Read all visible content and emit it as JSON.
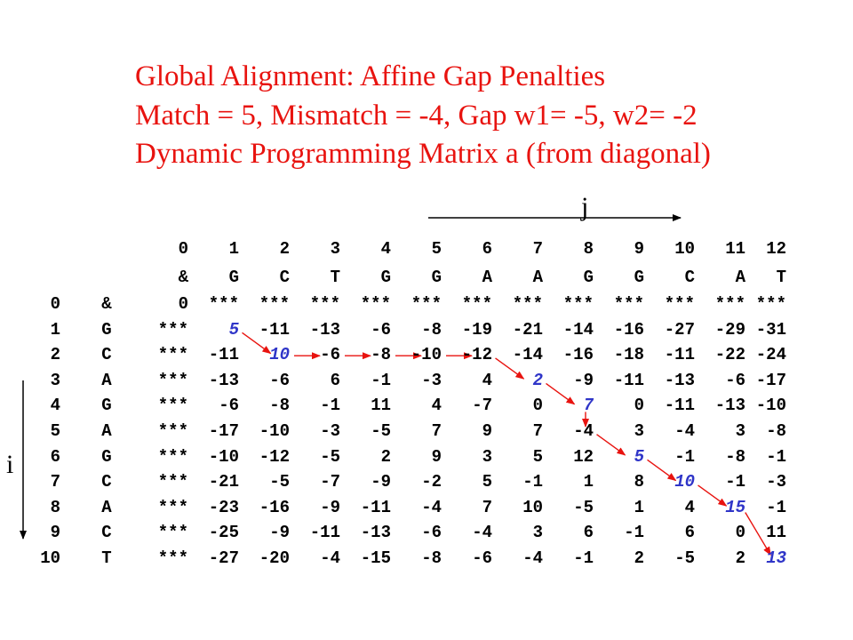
{
  "title": {
    "line1": "Global Alignment: Affine Gap Penalties",
    "line2": "Match = 5, Mismatch = -4, Gap w1= -5, w2= -2",
    "line3": "Dynamic Programming Matrix a (from diagonal)"
  },
  "axis": {
    "j_label": "j",
    "i_label": "i"
  },
  "col_indices": [
    "0",
    "1",
    "2",
    "3",
    "4",
    "5",
    "6",
    "7",
    "8",
    "9",
    "10",
    "11",
    "12"
  ],
  "col_letters": [
    "&",
    "G",
    "C",
    "T",
    "G",
    "G",
    "A",
    "A",
    "G",
    "G",
    "C",
    "A",
    "T"
  ],
  "rows": [
    {
      "i": "0",
      "ch": "&",
      "cells": [
        "0",
        "***",
        "***",
        "***",
        "***",
        "***",
        "***",
        "***",
        "***",
        "***",
        "***",
        "***",
        "***"
      ]
    },
    {
      "i": "1",
      "ch": "G",
      "cells": [
        "***",
        "5",
        "-11",
        "-13",
        "-6",
        "-8",
        "-19",
        "-21",
        "-14",
        "-16",
        "-27",
        "-29",
        "-31"
      ]
    },
    {
      "i": "2",
      "ch": "C",
      "cells": [
        "***",
        "-11",
        "10",
        "-6",
        "-8",
        "-10",
        "-12",
        "-14",
        "-16",
        "-18",
        "-11",
        "-22",
        "-24"
      ]
    },
    {
      "i": "3",
      "ch": "A",
      "cells": [
        "***",
        "-13",
        "-6",
        "6",
        "-1",
        "-3",
        "4",
        "2",
        "-9",
        "-11",
        "-13",
        "-6",
        "-17"
      ]
    },
    {
      "i": "4",
      "ch": "G",
      "cells": [
        "***",
        "-6",
        "-8",
        "-1",
        "11",
        "4",
        "-7",
        "0",
        "7",
        "0",
        "-11",
        "-13",
        "-10"
      ]
    },
    {
      "i": "5",
      "ch": "A",
      "cells": [
        "***",
        "-17",
        "-10",
        "-3",
        "-5",
        "7",
        "9",
        "7",
        "-4",
        "3",
        "-4",
        "3",
        "-8"
      ]
    },
    {
      "i": "6",
      "ch": "G",
      "cells": [
        "***",
        "-10",
        "-12",
        "-5",
        "2",
        "9",
        "3",
        "5",
        "12",
        "5",
        "-1",
        "-8",
        "-1"
      ]
    },
    {
      "i": "7",
      "ch": "C",
      "cells": [
        "***",
        "-21",
        "-5",
        "-7",
        "-9",
        "-2",
        "5",
        "-1",
        "1",
        "8",
        "10",
        "-1",
        "-3"
      ]
    },
    {
      "i": "8",
      "ch": "A",
      "cells": [
        "***",
        "-23",
        "-16",
        "-9",
        "-11",
        "-4",
        "7",
        "10",
        "-5",
        "1",
        "4",
        "15",
        "-1"
      ]
    },
    {
      "i": "9",
      "ch": "C",
      "cells": [
        "***",
        "-25",
        "-9",
        "-11",
        "-13",
        "-6",
        "-4",
        "3",
        "6",
        "-1",
        "6",
        "0",
        "11"
      ]
    },
    {
      "i": "10",
      "ch": "T",
      "cells": [
        "***",
        "-27",
        "-20",
        "-4",
        "-15",
        "-8",
        "-6",
        "-4",
        "-1",
        "2",
        "-5",
        "2",
        "13"
      ]
    }
  ],
  "highlight_cells": [
    [
      1,
      1
    ],
    [
      2,
      2
    ],
    [
      3,
      7
    ],
    [
      4,
      8
    ],
    [
      6,
      9
    ],
    [
      7,
      10
    ],
    [
      8,
      11
    ],
    [
      10,
      12
    ]
  ],
  "traceback_path": [
    [
      1,
      1
    ],
    [
      2,
      2
    ],
    [
      2,
      3
    ],
    [
      2,
      4
    ],
    [
      2,
      5
    ],
    [
      2,
      6
    ],
    [
      3,
      7
    ],
    [
      4,
      8
    ],
    [
      5,
      8
    ],
    [
      6,
      9
    ],
    [
      7,
      10
    ],
    [
      8,
      11
    ],
    [
      10,
      12
    ]
  ],
  "colors": {
    "title": "#e8130f",
    "highlight": "#2f35c8",
    "arrow": "#e8130f",
    "text": "#000000"
  }
}
